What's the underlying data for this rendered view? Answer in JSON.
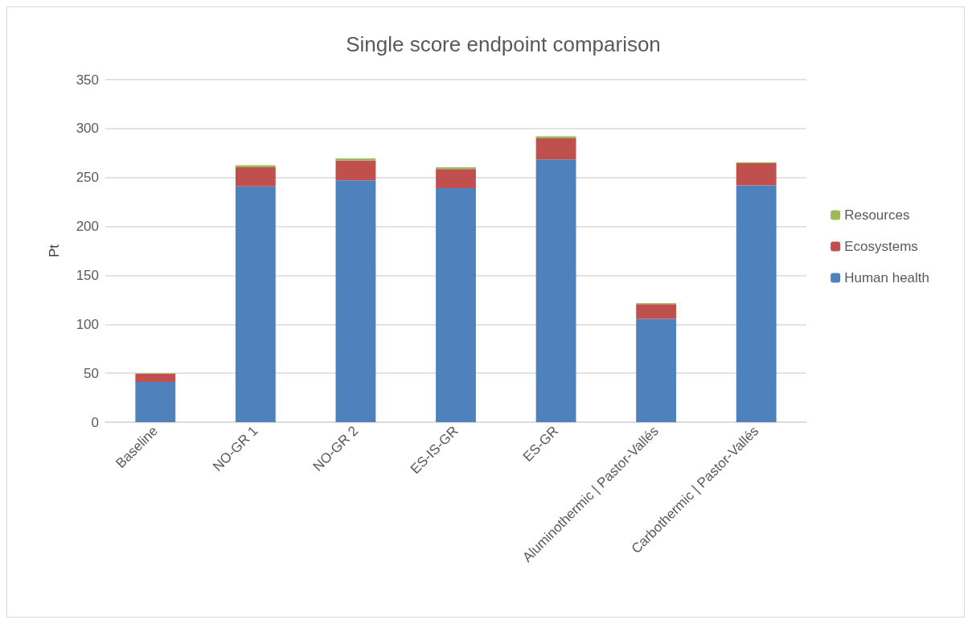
{
  "chart_data": {
    "type": "bar",
    "title": "Single score endpoint comparison",
    "ylabel": "Pt",
    "stacked": true,
    "categories": [
      "Baseline",
      "NO-GR 1",
      "NO-GR 2",
      "ES-IS-GR",
      "ES-GR",
      "Aluminothermic | Pastor-Vallés",
      "Carbothermic | Pastor-Vallés"
    ],
    "series": [
      {
        "name": "Human health",
        "color": "#4f81bd",
        "values": [
          41,
          241,
          247,
          239,
          268.5,
          105.5,
          242
        ]
      },
      {
        "name": "Ecosystems",
        "color": "#c0504d",
        "values": [
          8.5,
          19.5,
          20.5,
          19.5,
          21.5,
          15,
          22.5
        ]
      },
      {
        "name": "Resources",
        "color": "#9bbb59",
        "values": [
          0.5,
          2,
          2,
          2,
          2,
          1,
          1
        ]
      }
    ],
    "ylim": [
      0,
      350
    ],
    "yticks": [
      0,
      50,
      100,
      150,
      200,
      250,
      300,
      350
    ],
    "grid": "y",
    "legend": "right"
  }
}
